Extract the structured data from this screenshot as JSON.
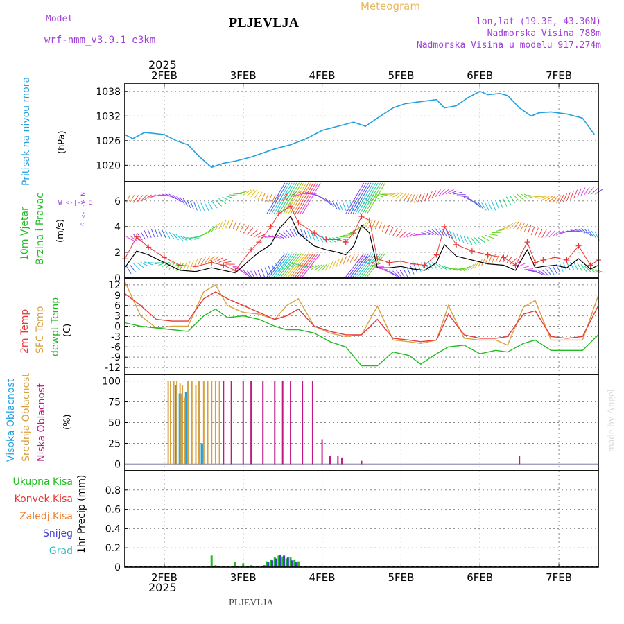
{
  "header": {
    "model_label": "Model",
    "model_name": "wrf-nmm_v3.9.1 e3km",
    "station": "PLJEVLJA",
    "product": "Meteogram",
    "lonlat": "lon,lat (19.3E, 43.36N)",
    "elevation": "Nadmorska Visina 788m",
    "model_elevation": "Nadmorska Visina u modelu 917.274m",
    "year_top": "2025",
    "year_bottom": "2025",
    "footer_station": "PLJEVLJA",
    "credit": "made by Angel"
  },
  "time_axis": {
    "labels": [
      "2FEB",
      "3FEB",
      "4FEB",
      "5FEB",
      "6FEB",
      "7FEB"
    ],
    "start_day": 1.5,
    "end_day": 7.5
  },
  "panels": {
    "pressure": {
      "label": "Pritisak na nivou mora",
      "unit": "(hPa)"
    },
    "wind": {
      "label1": "10m Vjetar",
      "label2": "Brzina i Pravac",
      "unit": "(m/s)",
      "compass": "W <-|-> E",
      "compass_ns": "S <-|-> N"
    },
    "temp": {
      "label1": "2m Temp",
      "label2": "SFC Temp",
      "label3": "dewpt Temp",
      "unit": "(C)"
    },
    "cloud": {
      "label1": "Visoka Oblacnost",
      "label2": "Srednja Oblacnost",
      "label3": "Niska Oblacnost",
      "unit": "(%)"
    },
    "precip": {
      "unit": "1hr Precip (mm)"
    }
  },
  "precip_legend": [
    {
      "label": "Ukupna Kisa",
      "color": "#22bb22"
    },
    {
      "label": "Konvek.Kisa",
      "color": "#e83838"
    },
    {
      "label": "Zaledj.Kisa",
      "color": "#f08030"
    },
    {
      "label": "Snijeg",
      "color": "#4040d0"
    },
    {
      "label": "Grad",
      "color": "#30c0c0"
    }
  ],
  "colors": {
    "pressure": "#20a0e0",
    "wind_speed": "#000000",
    "wind_gust": "#e83838",
    "temp2m": "#e83838",
    "sfc_temp": "#d8a040",
    "dewpoint": "#22bb22",
    "cloud_high": "#20a0e0",
    "cloud_mid": "#d8a040",
    "cloud_low": "#c01880",
    "precip_total": "#22bb22",
    "precip_snow": "#4040d0",
    "precip_grad": "#30c0c0",
    "label_blue": "#20a0e0",
    "label_green": "#22bb22",
    "label_purple": "#a040d8"
  },
  "chart_data": [
    {
      "type": "line",
      "title": "Pritisak na nivou mora",
      "ylabel": "(hPa)",
      "ylim": [
        1016,
        1040
      ],
      "yticks": [
        1020,
        1026,
        1032,
        1038
      ],
      "x": [
        1.5,
        1.6,
        1.75,
        2.0,
        2.15,
        2.3,
        2.45,
        2.6,
        2.75,
        2.9,
        3.0,
        3.1,
        3.25,
        3.4,
        3.6,
        3.8,
        4.0,
        4.2,
        4.4,
        4.55,
        4.7,
        4.9,
        5.05,
        5.25,
        5.45,
        5.55,
        5.7,
        5.85,
        6.0,
        6.1,
        6.25,
        6.35,
        6.5,
        6.65,
        6.75,
        6.9,
        7.1,
        7.3,
        7.45
      ],
      "series": [
        {
          "name": "MSLP",
          "values": [
            1027.5,
            1026.5,
            1028,
            1027.5,
            1026,
            1025,
            1022,
            1019.5,
            1020.5,
            1021,
            1021.5,
            1022,
            1023,
            1024,
            1025,
            1026.5,
            1028.5,
            1029.5,
            1030.5,
            1029.5,
            1031.5,
            1034,
            1035,
            1035.5,
            1036,
            1034,
            1034.5,
            1036.5,
            1038,
            1037.2,
            1037.5,
            1037,
            1034,
            1032,
            1032.8,
            1033,
            1032.5,
            1031.5,
            1027.5
          ]
        }
      ]
    },
    {
      "type": "line",
      "title": "10m Vjetar Brzina i Pravac",
      "ylabel": "(m/s)",
      "ylim": [
        0,
        7.5
      ],
      "yticks": [
        0,
        2,
        4,
        6
      ],
      "x": [
        1.5,
        1.65,
        1.8,
        2.0,
        2.2,
        2.4,
        2.6,
        2.75,
        2.9,
        3.1,
        3.2,
        3.35,
        3.45,
        3.6,
        3.7,
        3.9,
        4.05,
        4.2,
        4.3,
        4.4,
        4.5,
        4.6,
        4.7,
        4.85,
        5.0,
        5.15,
        5.3,
        5.45,
        5.55,
        5.7,
        5.9,
        6.1,
        6.3,
        6.45,
        6.6,
        6.7,
        6.8,
        6.95,
        7.1,
        7.25,
        7.4,
        7.5
      ],
      "series": [
        {
          "name": "Brzina",
          "values": [
            0.8,
            2.1,
            1.8,
            1.2,
            0.6,
            0.5,
            0.8,
            0.6,
            0.4,
            1.5,
            2.0,
            2.6,
            3.8,
            4.8,
            3.5,
            2.5,
            2.2,
            2.0,
            1.8,
            2.5,
            4.1,
            3.5,
            0.8,
            0.8,
            0.9,
            0.7,
            0.6,
            1.2,
            2.6,
            1.7,
            1.4,
            1.1,
            1.0,
            0.6,
            2.2,
            0.8,
            0.9,
            1.0,
            0.8,
            1.5,
            0.7,
            1.0
          ]
        },
        {
          "name": "Udar",
          "values": [
            1.5,
            3.2,
            2.4,
            1.6,
            1.0,
            0.9,
            1.2,
            1.0,
            0.6,
            2.2,
            2.8,
            4.0,
            5.0,
            5.6,
            4.3,
            3.5,
            3.0,
            3.0,
            2.8,
            3.5,
            4.8,
            4.5,
            1.5,
            1.2,
            1.3,
            1.1,
            1.0,
            1.8,
            4.0,
            2.6,
            2.1,
            1.8,
            1.6,
            1.0,
            2.8,
            1.2,
            1.4,
            1.6,
            1.4,
            2.5,
            1.0,
            1.4
          ]
        }
      ]
    },
    {
      "type": "line",
      "title": "2m Temp / SFC Temp / dewpt Temp",
      "ylabel": "(C)",
      "ylim": [
        -14,
        14
      ],
      "yticks": [
        -12,
        -9,
        -6,
        -3,
        0,
        3,
        6,
        9,
        12
      ],
      "x": [
        1.5,
        1.7,
        1.9,
        2.1,
        2.3,
        2.5,
        2.65,
        2.8,
        3.0,
        3.2,
        3.4,
        3.55,
        3.7,
        3.9,
        4.1,
        4.3,
        4.5,
        4.7,
        4.9,
        5.1,
        5.25,
        5.45,
        5.6,
        5.8,
        6.0,
        6.2,
        6.35,
        6.55,
        6.7,
        6.9,
        7.1,
        7.3,
        7.5
      ],
      "series": [
        {
          "name": "2m Temp",
          "values": [
            9.5,
            6.0,
            2.0,
            1.5,
            1.5,
            8.0,
            10.0,
            8.0,
            6.0,
            4.0,
            2.0,
            3.0,
            5.0,
            0.0,
            -1.5,
            -2.5,
            -2.5,
            2.0,
            -3.5,
            -4.0,
            -4.5,
            -4.0,
            3.5,
            -2.5,
            -3.5,
            -3.5,
            -3.0,
            3.5,
            4.5,
            -3.0,
            -3.5,
            -3.0,
            6.0
          ]
        },
        {
          "name": "SFC Temp",
          "values": [
            13.0,
            3.0,
            -0.5,
            0.0,
            0.0,
            10.0,
            12.0,
            6.0,
            4.0,
            3.5,
            2.0,
            6.0,
            8.0,
            0.0,
            -2.0,
            -3.0,
            -2.5,
            5.8,
            -4.0,
            -4.5,
            -5.0,
            -4.0,
            6.0,
            -3.5,
            -4.0,
            -4.0,
            -5.5,
            5.5,
            7.5,
            -4.0,
            -4.0,
            -4.0,
            9.0
          ]
        },
        {
          "name": "dewpt Temp",
          "values": [
            1.0,
            0.0,
            -0.5,
            -1.0,
            -1.5,
            3.0,
            5.0,
            2.5,
            3.0,
            2.0,
            0.0,
            -1.0,
            -1.0,
            -2.0,
            -4.5,
            -6.0,
            -11.5,
            -11.5,
            -7.5,
            -8.5,
            -11.0,
            -8.0,
            -6.0,
            -5.5,
            -8.0,
            -7.0,
            -7.5,
            -5.0,
            -4.0,
            -7.0,
            -7.0,
            -7.0,
            -2.5
          ]
        }
      ]
    },
    {
      "type": "bar",
      "title": "Oblacnost",
      "ylabel": "(%)",
      "ylim": [
        -8,
        108
      ],
      "yticks": [
        0,
        25,
        50,
        75,
        100
      ],
      "series": [
        {
          "name": "Visoka Oblacnost",
          "x": [
            2.15,
            2.2,
            2.28,
            2.48
          ],
          "values": [
            95,
            85,
            87,
            25
          ]
        },
        {
          "name": "Srednja Oblacnost",
          "x": [
            2.05,
            2.08,
            2.12,
            2.16,
            2.2,
            2.23,
            2.26,
            2.3,
            2.35,
            2.4,
            2.44,
            2.5,
            2.55,
            2.6,
            2.65,
            2.7
          ],
          "values": [
            100,
            100,
            100,
            100,
            97,
            95,
            80,
            100,
            100,
            95,
            100,
            100,
            100,
            100,
            100,
            100
          ]
        },
        {
          "name": "Niska Oblacnost",
          "x": [
            2.75,
            2.85,
            3.0,
            3.1,
            3.25,
            3.4,
            3.5,
            3.6,
            3.75,
            3.88,
            4.0,
            4.1,
            4.2,
            4.25,
            4.5,
            6.5
          ],
          "values": [
            100,
            100,
            100,
            100,
            100,
            100,
            100,
            100,
            100,
            100,
            30,
            10,
            10,
            8,
            4,
            10
          ]
        }
      ]
    },
    {
      "type": "bar",
      "title": "1hr Precip",
      "ylabel": "1hr Precip (mm)",
      "ylim": [
        0,
        1.0
      ],
      "yticks": [
        0,
        0.2,
        0.4,
        0.6,
        0.8
      ],
      "series": [
        {
          "name": "Ukupna Kisa",
          "x": [
            2.6,
            2.65,
            2.9,
            3.0,
            3.1,
            3.3,
            3.35,
            3.4,
            3.45,
            3.5,
            3.55,
            3.6,
            3.65,
            3.7
          ],
          "values": [
            0.12,
            0.02,
            0.05,
            0.04,
            0.02,
            0.06,
            0.08,
            0.1,
            0.12,
            0.11,
            0.09,
            0.1,
            0.08,
            0.06
          ]
        },
        {
          "name": "Snijeg",
          "x": [
            3.25,
            3.3,
            3.35,
            3.4,
            3.45,
            3.5,
            3.55,
            3.6,
            3.65
          ],
          "values": [
            0.02,
            0.05,
            0.07,
            0.09,
            0.13,
            0.12,
            0.1,
            0.07,
            0.05
          ]
        }
      ]
    }
  ]
}
